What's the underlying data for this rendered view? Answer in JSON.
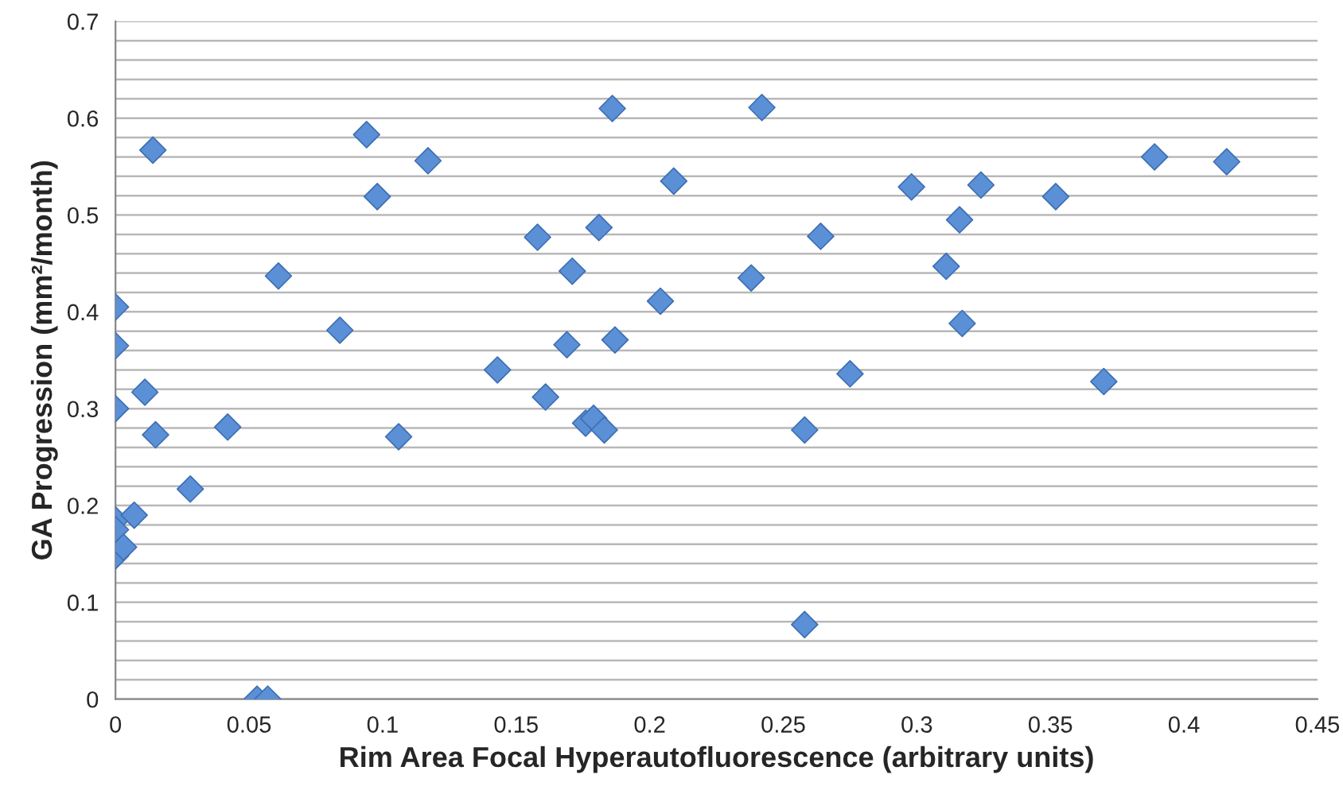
{
  "chart_data": {
    "type": "scatter",
    "xlabel": "Rim Area Focal Hyperautofluorescence (arbitrary units)",
    "ylabel": "GA Progression (mm²/month)",
    "marker": "diamond",
    "grid": "y",
    "x": [
      0,
      0,
      0,
      0,
      0,
      0,
      0.003,
      0.007,
      0.011,
      0.014,
      0.015,
      0.028,
      0.042,
      0.053,
      0.057,
      0.061,
      0.084,
      0.094,
      0.098,
      0.106,
      0.117,
      0.143,
      0.158,
      0.161,
      0.169,
      0.171,
      0.176,
      0.179,
      0.181,
      0.183,
      0.186,
      0.187,
      0.204,
      0.209,
      0.238,
      0.242,
      0.258,
      0.258,
      0.264,
      0.275,
      0.298,
      0.311,
      0.316,
      0.317,
      0.324,
      0.352,
      0.37,
      0.389,
      0.416
    ],
    "series": [
      {
        "color": "#5b8fd6",
        "values": [
          0.405,
          0.365,
          0.3,
          0.185,
          0.175,
          0.148,
          0.157,
          0.19,
          0.317,
          0.567,
          0.273,
          0.217,
          0.281,
          0,
          0,
          0.437,
          0.381,
          0.583,
          0.519,
          0.271,
          0.556,
          0.34,
          0.477,
          0.312,
          0.366,
          0.442,
          0.285,
          0.29,
          0.487,
          0.278,
          0.61,
          0.371,
          0.411,
          0.535,
          0.435,
          0.611,
          0.278,
          0.077,
          0.478,
          0.336,
          0.529,
          0.447,
          0.495,
          0.388,
          0.531,
          0.519,
          0.328,
          0.56,
          0.555
        ]
      }
    ],
    "xlim": [
      0,
      0.45
    ],
    "xticks": [
      {
        "value": 0,
        "label": "0"
      },
      0.05,
      0.1,
      0.15,
      0.2,
      0.25,
      0.3,
      0.35,
      0.4,
      0.45
    ],
    "ylim": [
      0,
      0.7
    ],
    "yticks": [
      {
        "value": 0,
        "label": "0"
      },
      {
        "value": 0.02,
        "label": null
      },
      {
        "value": 0.04,
        "label": null
      },
      {
        "value": 0.06,
        "label": null
      },
      {
        "value": 0.08,
        "label": null
      },
      0.1,
      {
        "value": 0.12,
        "label": null
      },
      {
        "value": 0.14,
        "label": null
      },
      {
        "value": 0.16,
        "label": null
      },
      {
        "value": 0.18,
        "label": null
      },
      0.2,
      {
        "value": 0.22,
        "label": null
      },
      {
        "value": 0.24,
        "label": null
      },
      {
        "value": 0.26,
        "label": null
      },
      {
        "value": 0.28,
        "label": null
      },
      0.3,
      {
        "value": 0.32,
        "label": null
      },
      {
        "value": 0.34,
        "label": null
      },
      {
        "value": 0.36,
        "label": null
      },
      {
        "value": 0.38,
        "label": null
      },
      0.4,
      {
        "value": 0.42,
        "label": null
      },
      {
        "value": 0.44,
        "label": null
      },
      {
        "value": 0.46,
        "label": null
      },
      {
        "value": 0.48,
        "label": null
      },
      0.5,
      {
        "value": 0.52,
        "label": null
      },
      {
        "value": 0.54,
        "label": null
      },
      {
        "value": 0.56,
        "label": null
      },
      {
        "value": 0.58,
        "label": null
      },
      0.6,
      {
        "value": 0.62,
        "label": null
      },
      {
        "value": 0.64,
        "label": null
      },
      {
        "value": 0.66,
        "label": null
      },
      {
        "value": 0.68,
        "label": null
      },
      0.7
    ]
  }
}
